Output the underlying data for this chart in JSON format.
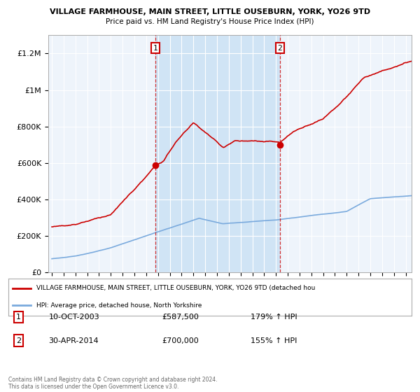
{
  "title": "VILLAGE FARMHOUSE, MAIN STREET, LITTLE OUSEBURN, YORK, YO26 9TD",
  "subtitle": "Price paid vs. HM Land Registry's House Price Index (HPI)",
  "ylabel_ticks": [
    "£0",
    "£200K",
    "£400K",
    "£600K",
    "£800K",
    "£1M",
    "£1.2M"
  ],
  "ytick_values": [
    0,
    200000,
    400000,
    600000,
    800000,
    1000000,
    1200000
  ],
  "ylim": [
    0,
    1300000
  ],
  "xlim_start": 1994.7,
  "xlim_end": 2025.5,
  "red_line_color": "#cc0000",
  "blue_line_color": "#7aaadd",
  "shade_color": "#d0e4f5",
  "background_color": "#ffffff",
  "plot_bg_color": "#eef4fb",
  "grid_color": "#ffffff",
  "legend_label_red": "VILLAGE FARMHOUSE, MAIN STREET, LITTLE OUSEBURN, YORK, YO26 9TD (detached hou",
  "legend_label_blue": "HPI: Average price, detached house, North Yorkshire",
  "sale1_x": 2003.78,
  "sale1_y": 587500,
  "sale1_label": "1",
  "sale2_x": 2014.33,
  "sale2_y": 700000,
  "sale2_label": "2",
  "footer_line1": "Contains HM Land Registry data © Crown copyright and database right 2024.",
  "footer_line2": "This data is licensed under the Open Government Licence v3.0.",
  "table_row1": [
    "1",
    "10-OCT-2003",
    "£587,500",
    "179% ↑ HPI"
  ],
  "table_row2": [
    "2",
    "30-APR-2014",
    "£700,000",
    "155% ↑ HPI"
  ]
}
